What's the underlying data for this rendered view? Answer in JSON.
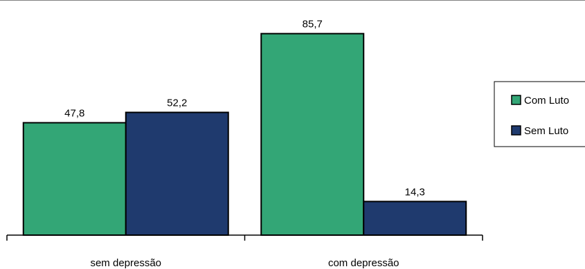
{
  "chart_data": {
    "type": "bar",
    "categories": [
      "sem depressão",
      "com depressão"
    ],
    "series": [
      {
        "name": "Com Luto",
        "values": [
          47.8,
          85.7
        ],
        "value_labels": [
          "47,8",
          "85,7"
        ],
        "color": "#33a676"
      },
      {
        "name": "Sem Luto",
        "values": [
          52.2,
          14.3
        ],
        "value_labels": [
          "52,2",
          "14,3"
        ],
        "color": "#1f3a6e"
      }
    ],
    "title": "",
    "xlabel": "",
    "ylabel": "",
    "ylim": [
      0,
      100
    ],
    "grid": false,
    "legend_position": "right"
  }
}
